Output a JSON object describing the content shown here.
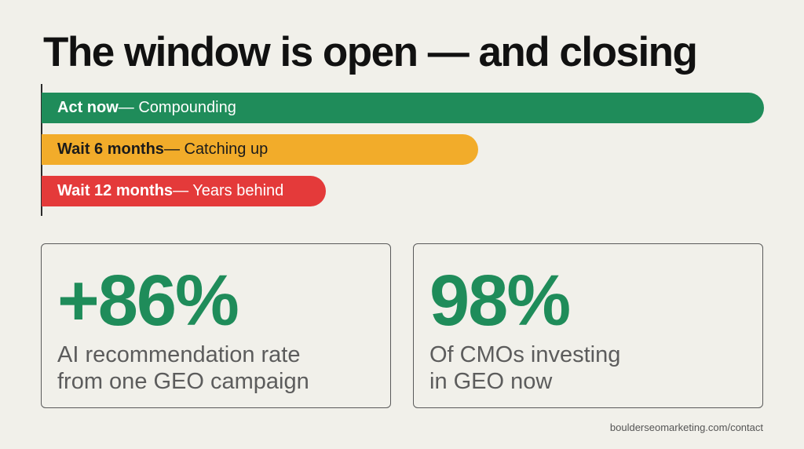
{
  "title": "The window is open — and closing",
  "timeline": {
    "bars": [
      {
        "strong": "Act now",
        "rest": " — Compounding",
        "color": "#1f8c5a"
      },
      {
        "strong": "Wait 6 months",
        "rest": " — Catching up",
        "color": "#f2ac2a"
      },
      {
        "strong": "Wait 12 months",
        "rest": " — Years behind",
        "color": "#e43a3a"
      }
    ]
  },
  "stats": [
    {
      "value": "+86%",
      "line1": "AI recommendation rate",
      "line2": "from one GEO campaign"
    },
    {
      "value": "98%",
      "line1": "Of CMOs investing",
      "line2": "in GEO now"
    }
  ],
  "footer": {
    "link": "boulderseomarketing.com/contact"
  },
  "colors": {
    "accent_green": "#1f8c5a",
    "background": "#f1f0ea"
  }
}
